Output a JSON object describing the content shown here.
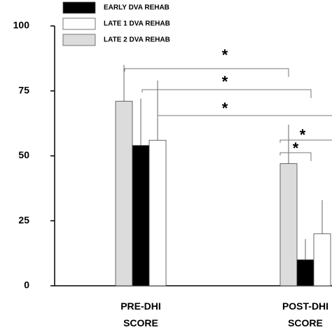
{
  "chart_data": {
    "type": "bar",
    "categories": [
      "PRE-DHI SCORE",
      "POST-DHI SCORE"
    ],
    "series": [
      {
        "name": "LATE 2 DVA REHAB",
        "color": "#dcdcdc",
        "values": [
          71,
          47
        ],
        "errors": [
          14,
          15
        ]
      },
      {
        "name": "EARLY DVA REHAB",
        "color": "#000000",
        "values": [
          54,
          10
        ],
        "errors": [
          18,
          8
        ]
      },
      {
        "name": "LATE 1 DVA REHAB",
        "color": "#ffffff",
        "values": [
          56,
          20
        ],
        "errors": [
          23,
          13
        ]
      }
    ],
    "legend_order": [
      1,
      2,
      0
    ],
    "ylim": [
      0,
      100
    ],
    "yticks": [
      0,
      25,
      50,
      75,
      100
    ],
    "annotations": [
      "*",
      "*",
      "*",
      "*",
      "*"
    ]
  }
}
